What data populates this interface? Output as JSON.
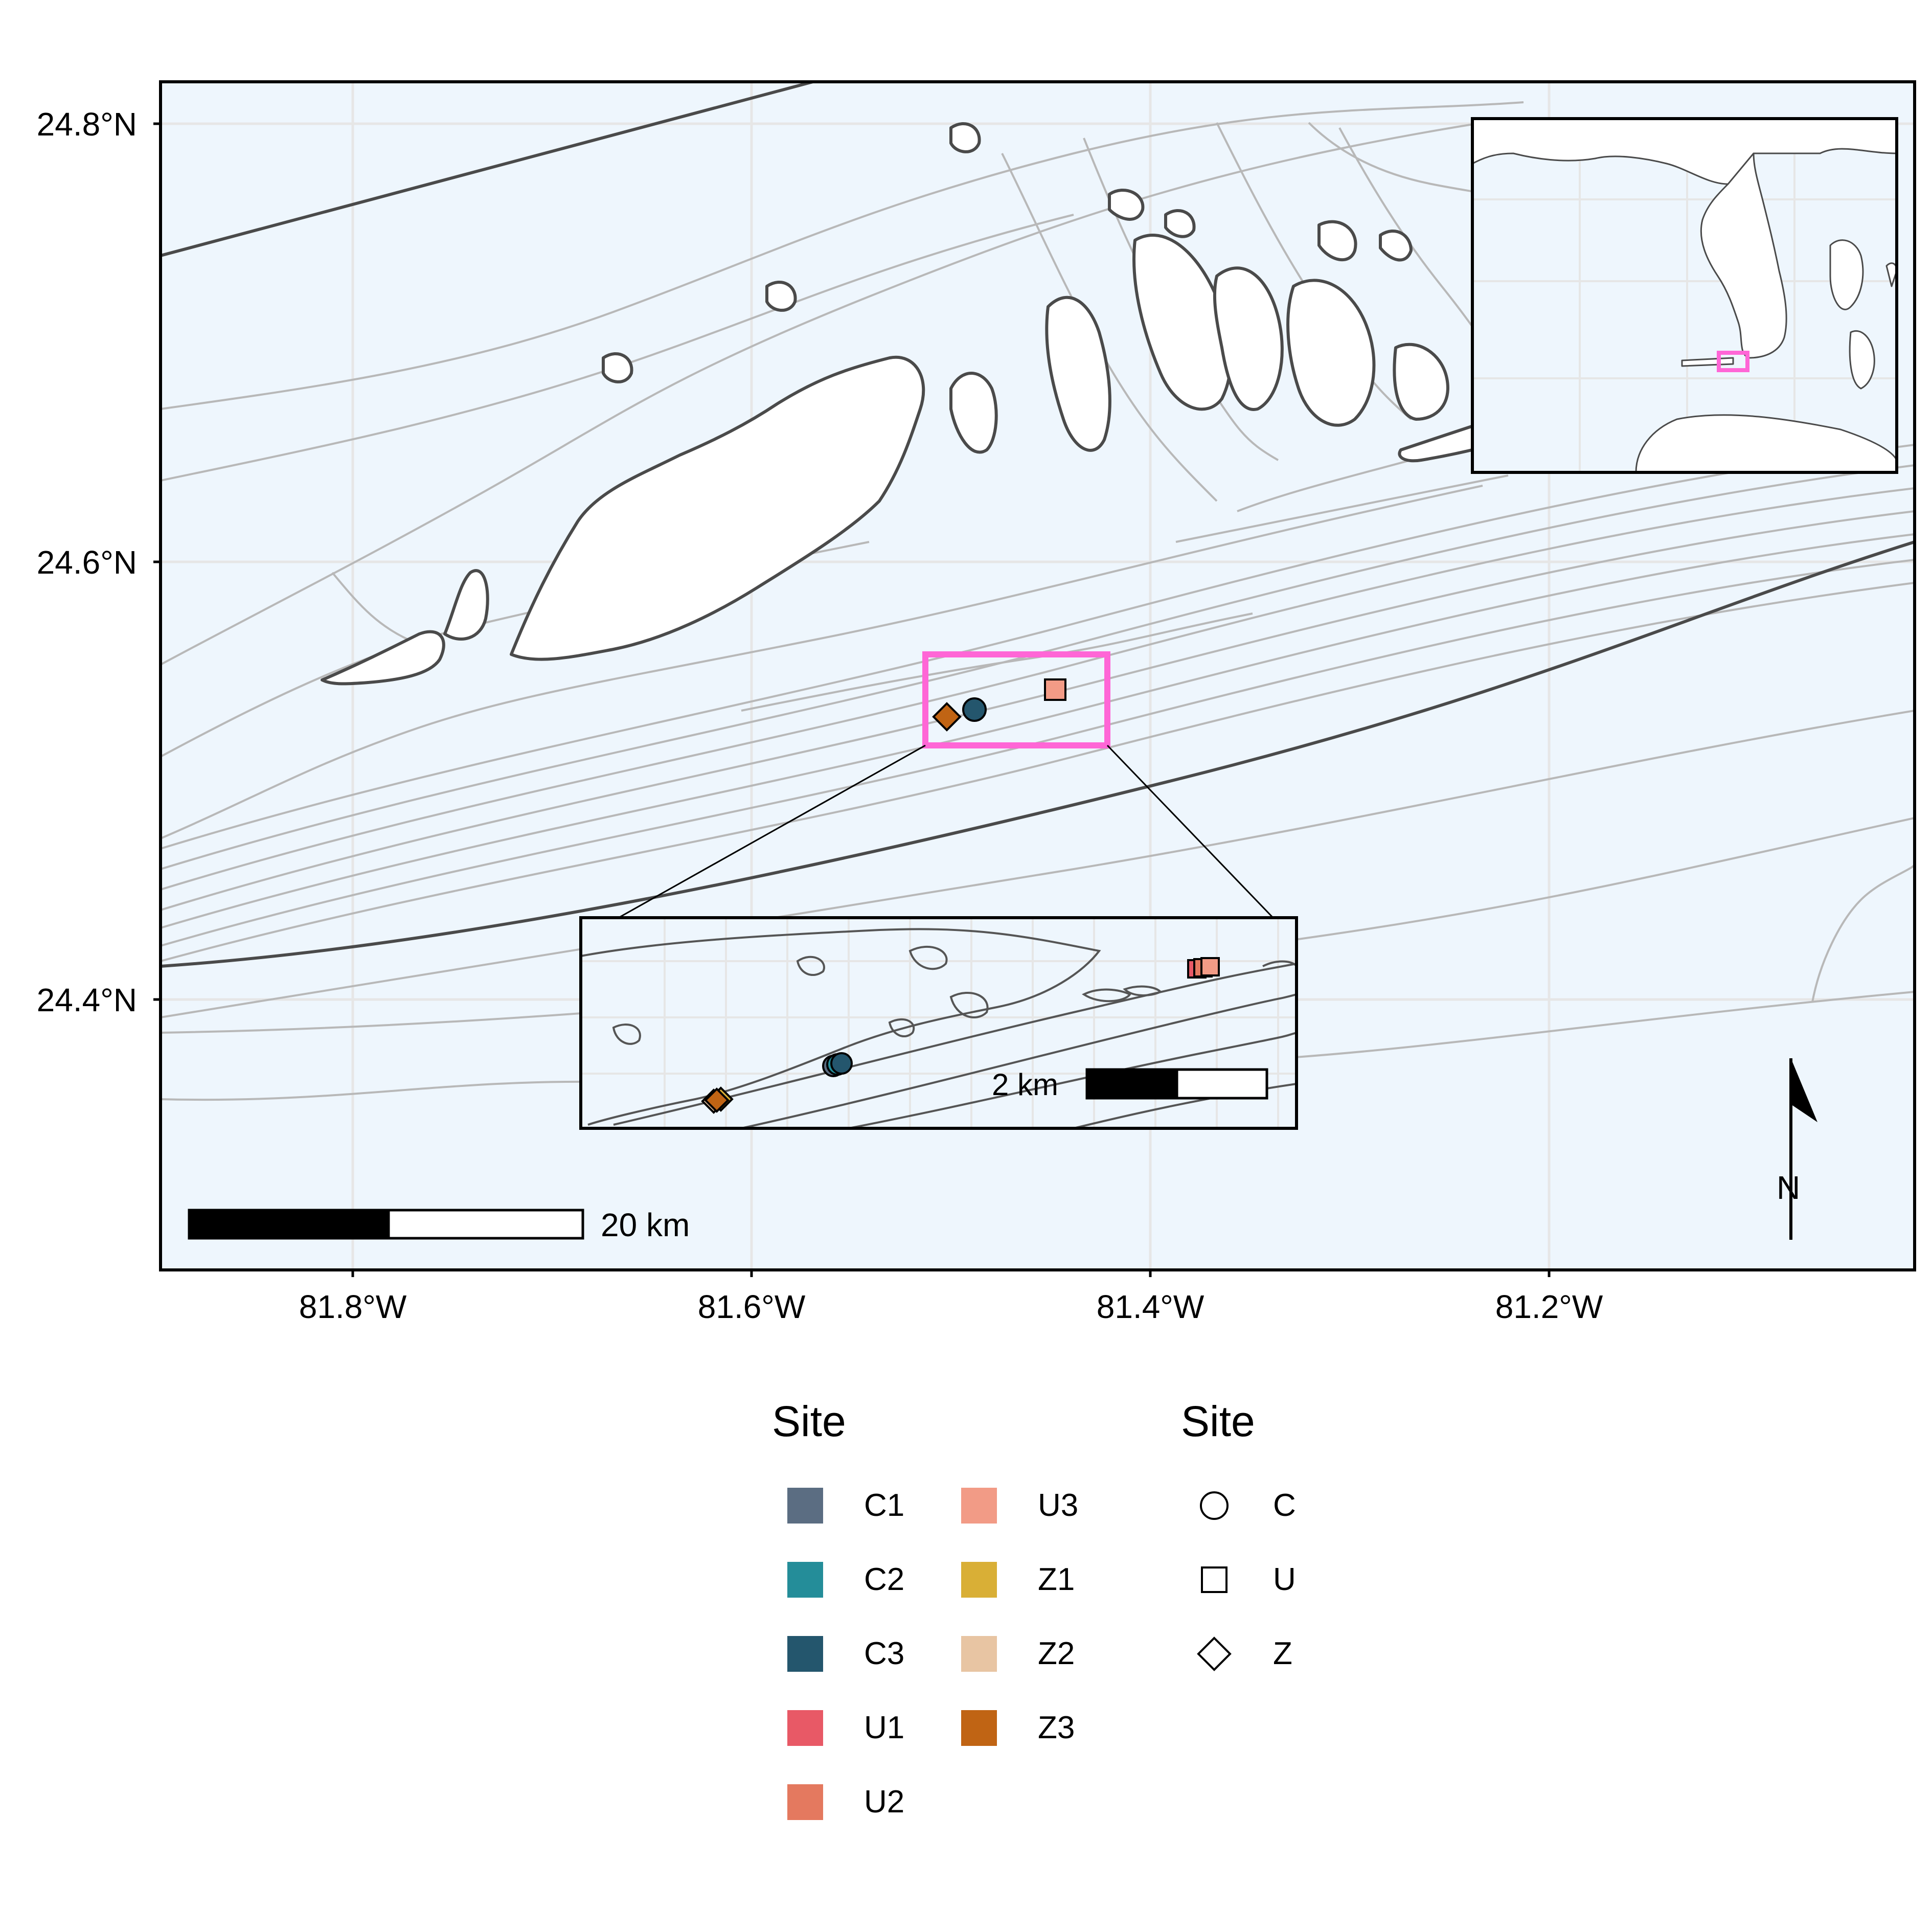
{
  "map": {
    "y_ticks": [
      "24.8°N",
      "24.6°N",
      "24.4°N"
    ],
    "x_ticks": [
      "81.8°W",
      "81.6°W",
      "81.4°W",
      "81.2°W"
    ],
    "scale_bar_main": "20 km",
    "scale_bar_inset": "2 km",
    "north_label": "N",
    "colors": {
      "water": "#eef6fd",
      "land": "#ffffff",
      "coast": "#4a4a4a",
      "contour": "#b8b8b8",
      "grid": "#e6e6e6",
      "highlight_box": "#ff66d6"
    }
  },
  "legend_color": {
    "title": "Site",
    "items": [
      {
        "label": "C1",
        "color": "#5b6d82"
      },
      {
        "label": "C2",
        "color": "#248d99"
      },
      {
        "label": "C3",
        "color": "#24566d"
      },
      {
        "label": "U1",
        "color": "#e85966"
      },
      {
        "label": "U2",
        "color": "#e4795f"
      },
      {
        "label": "U3",
        "color": "#f29b86"
      },
      {
        "label": "Z1",
        "color": "#d9af36"
      },
      {
        "label": "Z2",
        "color": "#e8c5a3"
      },
      {
        "label": "Z3",
        "color": "#c06414"
      }
    ]
  },
  "legend_shape": {
    "title": "Site",
    "items": [
      {
        "label": "C",
        "shape": "circle"
      },
      {
        "label": "U",
        "shape": "square"
      },
      {
        "label": "Z",
        "shape": "diamond"
      }
    ]
  }
}
